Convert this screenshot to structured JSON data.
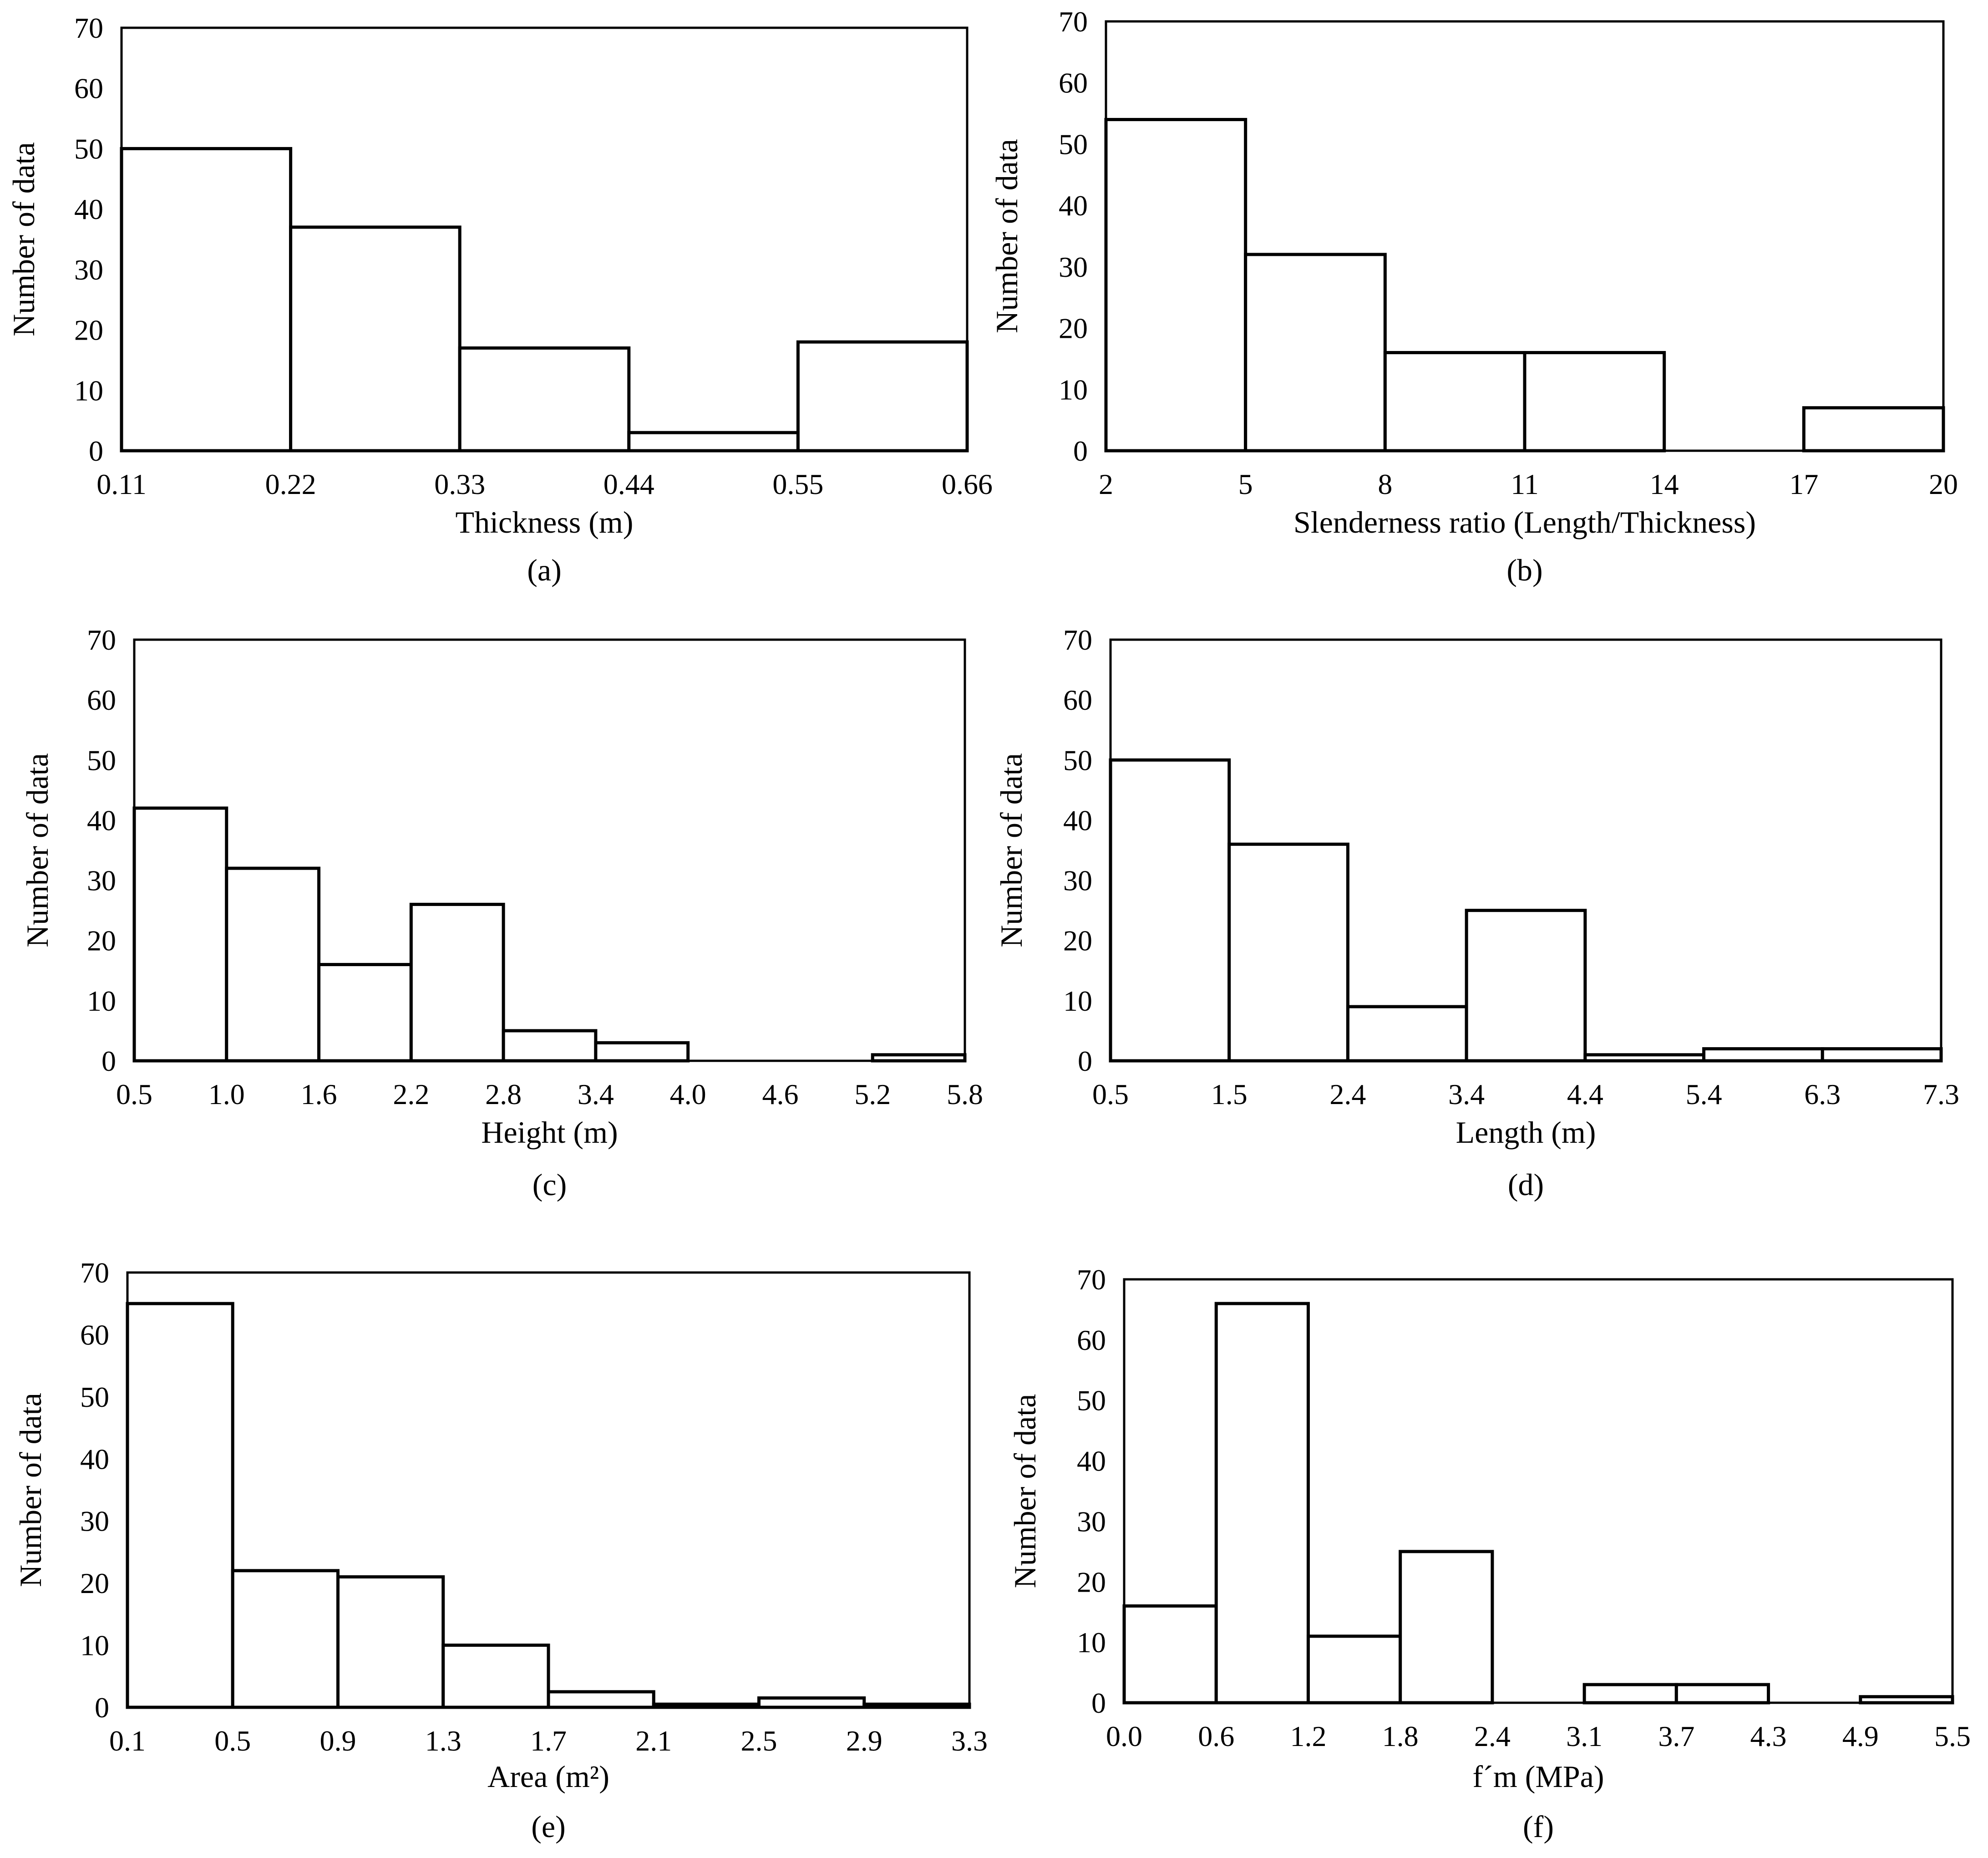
{
  "chart_data": [
    {
      "type": "bar",
      "caption": "(a)",
      "title": "",
      "xlabel": "Thickness (m)",
      "ylabel": "Number of data",
      "bin_edges": [
        "0.11",
        "0.22",
        "0.33",
        "0.44",
        "0.55",
        "0.66"
      ],
      "values": [
        50,
        37,
        17,
        3,
        18
      ],
      "ylim": [
        0,
        70
      ],
      "yticks": [
        "0",
        "10",
        "20",
        "30",
        "40",
        "50",
        "60",
        "70"
      ],
      "grid": false
    },
    {
      "type": "bar",
      "caption": "(b)",
      "title": "",
      "xlabel": "Slenderness ratio (Length/Thickness)",
      "ylabel": "Number of data",
      "bin_edges": [
        "2",
        "5",
        "8",
        "11",
        "14",
        "17",
        "20"
      ],
      "values": [
        54,
        32,
        16,
        16,
        0,
        7
      ],
      "ylim": [
        0,
        70
      ],
      "yticks": [
        "0",
        "10",
        "20",
        "30",
        "40",
        "50",
        "60",
        "70"
      ],
      "grid": false
    },
    {
      "type": "bar",
      "caption": "(c)",
      "title": "",
      "xlabel": "Height (m)",
      "ylabel": "Number of data",
      "bin_edges": [
        "0.5",
        "1.0",
        "1.6",
        "2.2",
        "2.8",
        "3.4",
        "4.0",
        "4.6",
        "5.2",
        "5.8"
      ],
      "values": [
        42,
        32,
        16,
        26,
        5,
        3,
        0,
        0,
        1
      ],
      "ylim": [
        0,
        70
      ],
      "yticks": [
        "0",
        "10",
        "20",
        "30",
        "40",
        "50",
        "60",
        "70"
      ],
      "grid": false
    },
    {
      "type": "bar",
      "caption": "(d)",
      "title": "",
      "xlabel": "Length (m)",
      "ylabel": "Number of data",
      "bin_edges": [
        "0.5",
        "1.5",
        "2.4",
        "3.4",
        "4.4",
        "5.4",
        "6.3",
        "7.3"
      ],
      "values": [
        50,
        36,
        9,
        25,
        1,
        2,
        2
      ],
      "ylim": [
        0,
        70
      ],
      "yticks": [
        "0",
        "10",
        "20",
        "30",
        "40",
        "50",
        "60",
        "70"
      ],
      "grid": false
    },
    {
      "type": "bar",
      "caption": "(e)",
      "title": "",
      "xlabel": "Area (m²)",
      "ylabel": "Number of data",
      "bin_edges": [
        "0.1",
        "0.5",
        "0.9",
        "1.3",
        "1.7",
        "2.1",
        "2.5",
        "2.9",
        "3.3"
      ],
      "values": [
        65,
        22,
        21,
        10,
        2.5,
        0.5,
        1.5,
        0.5
      ],
      "ylim": [
        0,
        70
      ],
      "yticks": [
        "0",
        "10",
        "20",
        "30",
        "40",
        "50",
        "60",
        "70"
      ],
      "grid": false
    },
    {
      "type": "bar",
      "caption": "(f)",
      "title": "",
      "xlabel": "f´m  (MPa)",
      "ylabel": "Number of data",
      "bin_edges": [
        "0.0",
        "0.6",
        "1.2",
        "1.8",
        "2.4",
        "3.1",
        "3.7",
        "4.3",
        "4.9",
        "5.5"
      ],
      "values": [
        16,
        66,
        11,
        25,
        0,
        3,
        3,
        0,
        1
      ],
      "ylim": [
        0,
        70
      ],
      "yticks": [
        "0",
        "10",
        "20",
        "30",
        "40",
        "50",
        "60",
        "70"
      ],
      "grid": false
    }
  ]
}
